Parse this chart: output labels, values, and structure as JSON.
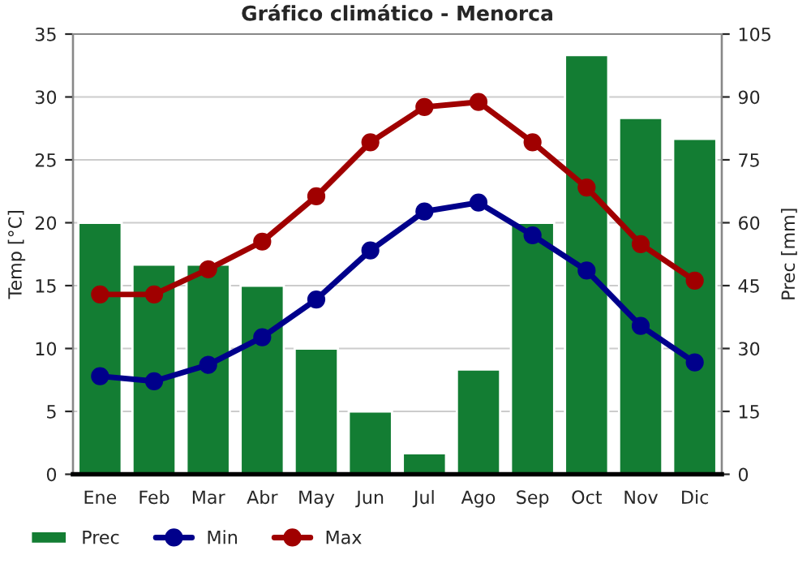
{
  "chart_data": {
    "type": "line",
    "title": "Gráfico climático - Menorca",
    "ylabel": "Temp [°C]",
    "y2label": "Prec [mm]",
    "categories": [
      "Ene",
      "Feb",
      "Mar",
      "Abr",
      "May",
      "Jun",
      "Jul",
      "Ago",
      "Sep",
      "Oct",
      "Nov",
      "Dic"
    ],
    "series": [
      {
        "name": "Prec",
        "type": "bar",
        "axis": "y2",
        "color": "#137d33",
        "values": [
          60,
          50,
          50,
          45,
          30,
          15,
          5,
          25,
          60,
          100,
          85,
          80
        ]
      },
      {
        "name": "Min",
        "color": "#00008b",
        "values": [
          7.8,
          7.4,
          8.7,
          10.9,
          13.9,
          17.8,
          20.9,
          21.6,
          19.0,
          16.2,
          11.8,
          8.9
        ]
      },
      {
        "name": "Max",
        "color": "#a00000",
        "values": [
          14.3,
          14.3,
          16.3,
          18.5,
          22.1,
          26.4,
          29.2,
          29.6,
          26.4,
          22.8,
          18.3,
          15.4
        ]
      }
    ],
    "ylim": [
      0,
      35
    ],
    "yticks": [
      0,
      5,
      10,
      15,
      20,
      25,
      30,
      35
    ],
    "y2lim": [
      0,
      105
    ],
    "y2ticks": [
      0,
      15,
      30,
      45,
      60,
      75,
      90,
      105
    ],
    "grid": "y",
    "legend": "bottom",
    "marker": "circle",
    "line_style": "solid"
  }
}
